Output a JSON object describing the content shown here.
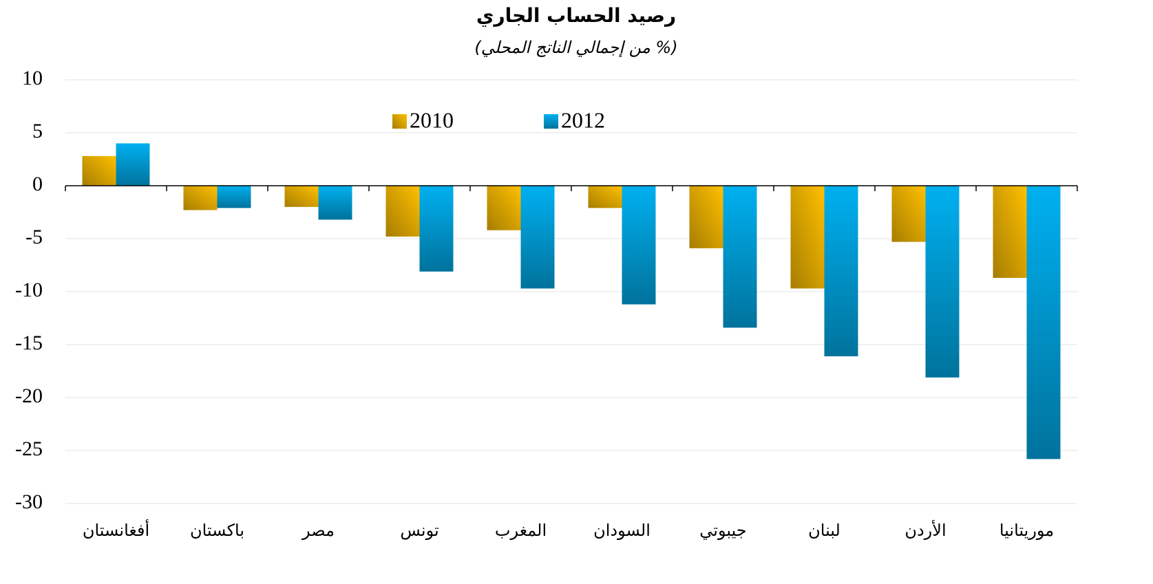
{
  "chart_data": {
    "type": "bar",
    "title": "رصيد الحساب الجاري",
    "subtitle": "(% من إجمالي الناتج المحلي)",
    "categories": [
      "أفغانستان",
      "باكستان",
      "مصر",
      "تونس",
      "المغرب",
      "السودان",
      "جيبوتي",
      "لبنان",
      "الأردن",
      "موريتانيا"
    ],
    "series": [
      {
        "name": "2010",
        "color": "#ffc000",
        "values": [
          2.8,
          -2.3,
          -2.0,
          -4.8,
          -4.2,
          -2.1,
          -5.9,
          -9.7,
          -5.3,
          -8.7
        ]
      },
      {
        "name": "2012",
        "color": "#00b0f0",
        "values": [
          4.0,
          -2.1,
          -3.2,
          -8.1,
          -9.7,
          -11.2,
          -13.4,
          -16.1,
          -18.1,
          -25.8
        ]
      }
    ],
    "ylim": [
      -30,
      10
    ],
    "yticks": [
      -30,
      -25,
      -20,
      -15,
      -10,
      -5,
      0,
      5,
      10
    ],
    "grid": true
  }
}
